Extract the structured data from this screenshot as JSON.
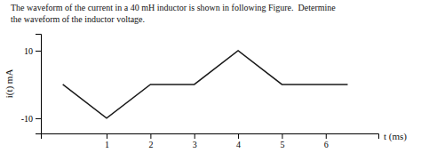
{
  "chart_data": {
    "type": "line",
    "title": "The waveform of the current in a 40 mH inductor is shown in following Figure.  Determine",
    "subtitle": "the waveform of the inductor voltage.",
    "x_label": "t (ms)",
    "y_label": "i(t) mA",
    "x": [
      0,
      1,
      2,
      3,
      4,
      5,
      6.5
    ],
    "values": [
      0,
      -10,
      0,
      0,
      10,
      0,
      0
    ],
    "color": "#1a1a1a",
    "xlim": [
      -0.5,
      7.2
    ],
    "ylim": [
      -14.5,
      15
    ],
    "xticks": [
      1,
      2,
      3,
      4,
      5,
      6
    ],
    "yticks": [
      -10,
      10
    ]
  }
}
